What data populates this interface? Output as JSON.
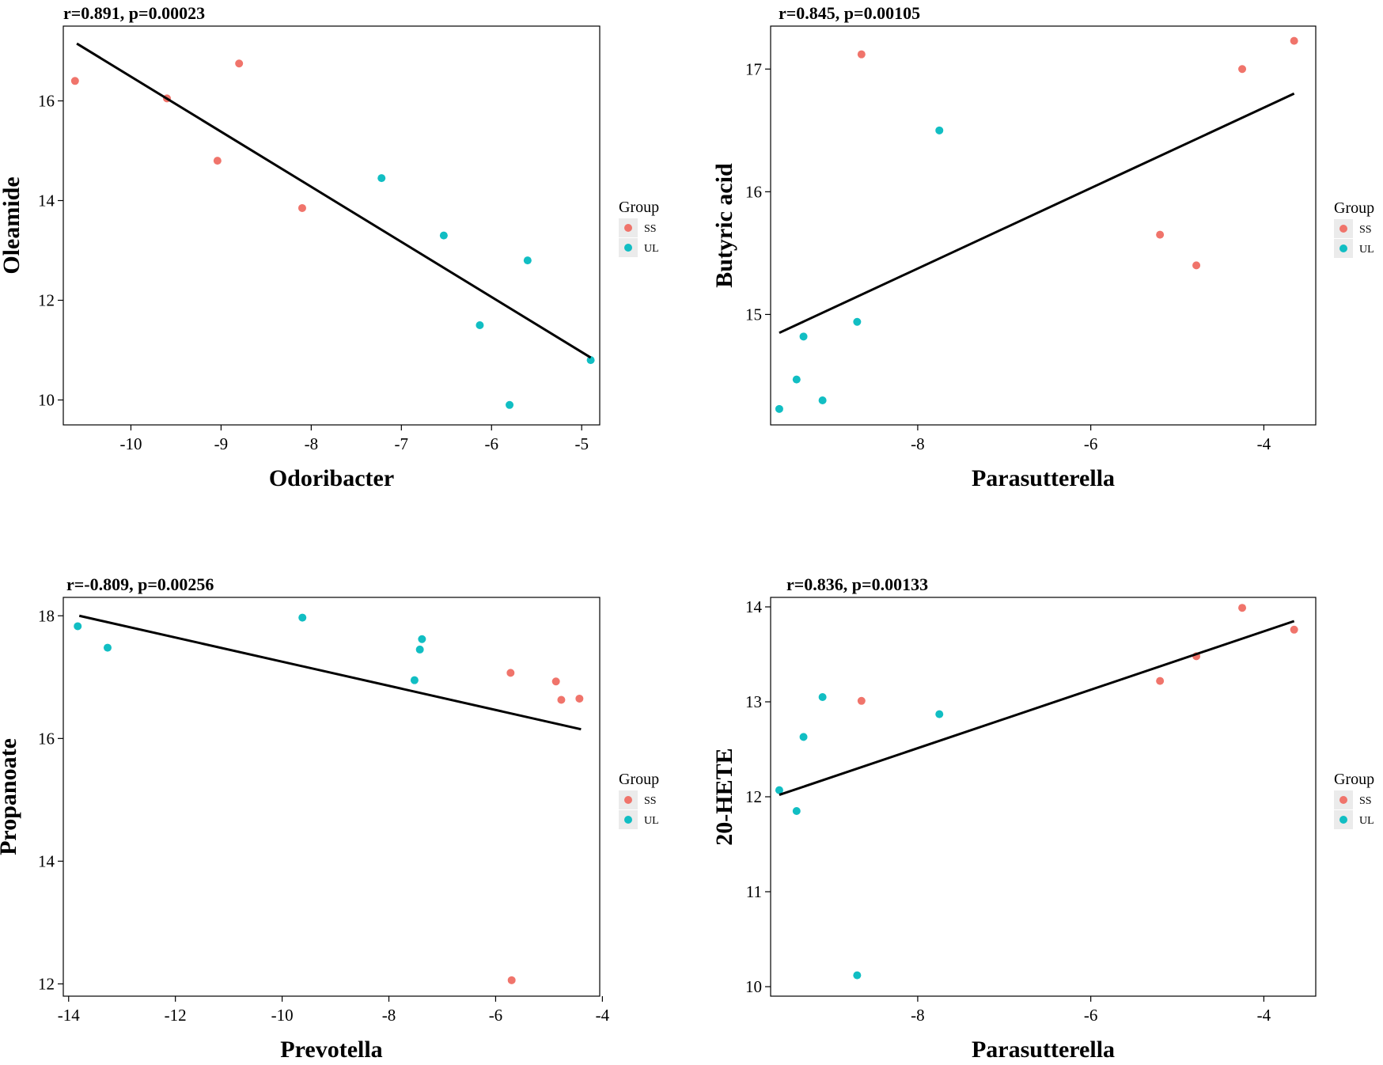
{
  "colors": {
    "SS": "#f0746b",
    "UL": "#11bec3",
    "line": "#000000"
  },
  "chart_data": [
    {
      "type": "scatter",
      "title": "r=0.891, p=0.00023",
      "xlabel": "Odoribacter",
      "ylabel": "Oleamide",
      "xlim": [
        -10.75,
        -4.8
      ],
      "ylim": [
        9.5,
        17.5
      ],
      "xticks": [
        -10,
        -9,
        -8,
        -7,
        -6,
        -5
      ],
      "yticks": [
        10,
        12,
        14,
        16
      ],
      "fit": [
        [
          -10.6,
          17.15
        ],
        [
          -4.9,
          10.85
        ]
      ],
      "legend": {
        "title": "Group",
        "entries": [
          "SS",
          "UL"
        ]
      },
      "series": [
        {
          "name": "SS",
          "points": [
            [
              -10.62,
              16.4
            ],
            [
              -9.6,
              16.05
            ],
            [
              -8.8,
              16.75
            ],
            [
              -9.04,
              14.8
            ],
            [
              -8.1,
              13.85
            ]
          ]
        },
        {
          "name": "UL",
          "points": [
            [
              -7.22,
              14.45
            ],
            [
              -6.53,
              13.3
            ],
            [
              -5.6,
              12.8
            ],
            [
              -6.13,
              11.5
            ],
            [
              -5.8,
              9.9
            ],
            [
              -4.9,
              10.8
            ]
          ]
        }
      ]
    },
    {
      "type": "scatter",
      "title": "r=0.845, p=0.00105",
      "xlabel": "Parasutterella",
      "ylabel": "Butyric acid",
      "xlim": [
        -9.7,
        -3.4
      ],
      "ylim": [
        14.1,
        17.35
      ],
      "xticks": [
        -8,
        -6,
        -4
      ],
      "yticks": [
        15,
        16,
        17
      ],
      "fit": [
        [
          -9.6,
          14.85
        ],
        [
          -3.65,
          16.8
        ]
      ],
      "legend": {
        "title": "Group",
        "entries": [
          "SS",
          "UL"
        ]
      },
      "series": [
        {
          "name": "SS",
          "points": [
            [
              -8.65,
              17.12
            ],
            [
              -3.65,
              17.23
            ],
            [
              -4.25,
              17.0
            ],
            [
              -5.2,
              15.65
            ],
            [
              -4.78,
              15.4
            ]
          ]
        },
        {
          "name": "UL",
          "points": [
            [
              -7.75,
              16.5
            ],
            [
              -8.7,
              14.94
            ],
            [
              -9.32,
              14.82
            ],
            [
              -9.4,
              14.47
            ],
            [
              -9.1,
              14.3
            ],
            [
              -9.6,
              14.23
            ]
          ]
        }
      ]
    },
    {
      "type": "scatter",
      "title": "r=-0.809, p=0.00256",
      "xlabel": "Prevotella",
      "ylabel": "Propanoate",
      "xlim": [
        -14.1,
        -4.05
      ],
      "ylim": [
        11.8,
        18.3
      ],
      "xticks": [
        -14,
        -12,
        -10,
        -8,
        -6,
        -4
      ],
      "yticks": [
        12,
        14,
        16,
        18
      ],
      "fit": [
        [
          -13.8,
          18.0
        ],
        [
          -4.4,
          16.15
        ]
      ],
      "legend": {
        "title": "Group",
        "entries": [
          "SS",
          "UL"
        ]
      },
      "series": [
        {
          "name": "SS",
          "points": [
            [
              -5.72,
              17.07
            ],
            [
              -4.87,
              16.93
            ],
            [
              -4.77,
              16.63
            ],
            [
              -4.43,
              16.65
            ],
            [
              -5.7,
              12.06
            ]
          ]
        },
        {
          "name": "UL",
          "points": [
            [
              -13.83,
              17.83
            ],
            [
              -13.27,
              17.48
            ],
            [
              -9.62,
              17.97
            ],
            [
              -7.38,
              17.62
            ],
            [
              -7.42,
              17.45
            ],
            [
              -7.52,
              16.95
            ]
          ]
        }
      ]
    },
    {
      "type": "scatter",
      "title": "r=0.836, p=0.00133",
      "xlabel": "Parasutterella",
      "ylabel": "20-HETE",
      "xlim": [
        -9.7,
        -3.4
      ],
      "ylim": [
        9.9,
        14.1
      ],
      "xticks": [
        -8,
        -6,
        -4
      ],
      "yticks": [
        10,
        11,
        12,
        13,
        14
      ],
      "fit": [
        [
          -9.6,
          12.02
        ],
        [
          -3.65,
          13.85
        ]
      ],
      "legend": {
        "title": "Group",
        "entries": [
          "SS",
          "UL"
        ]
      },
      "series": [
        {
          "name": "SS",
          "points": [
            [
              -4.25,
              13.99
            ],
            [
              -3.65,
              13.76
            ],
            [
              -4.78,
              13.48
            ],
            [
              -5.2,
              13.22
            ],
            [
              -8.65,
              13.01
            ]
          ]
        },
        {
          "name": "UL",
          "points": [
            [
              -9.1,
              13.05
            ],
            [
              -7.75,
              12.87
            ],
            [
              -9.32,
              12.63
            ],
            [
              -9.6,
              12.07
            ],
            [
              -9.4,
              11.85
            ],
            [
              -8.7,
              10.12
            ]
          ]
        }
      ]
    }
  ]
}
